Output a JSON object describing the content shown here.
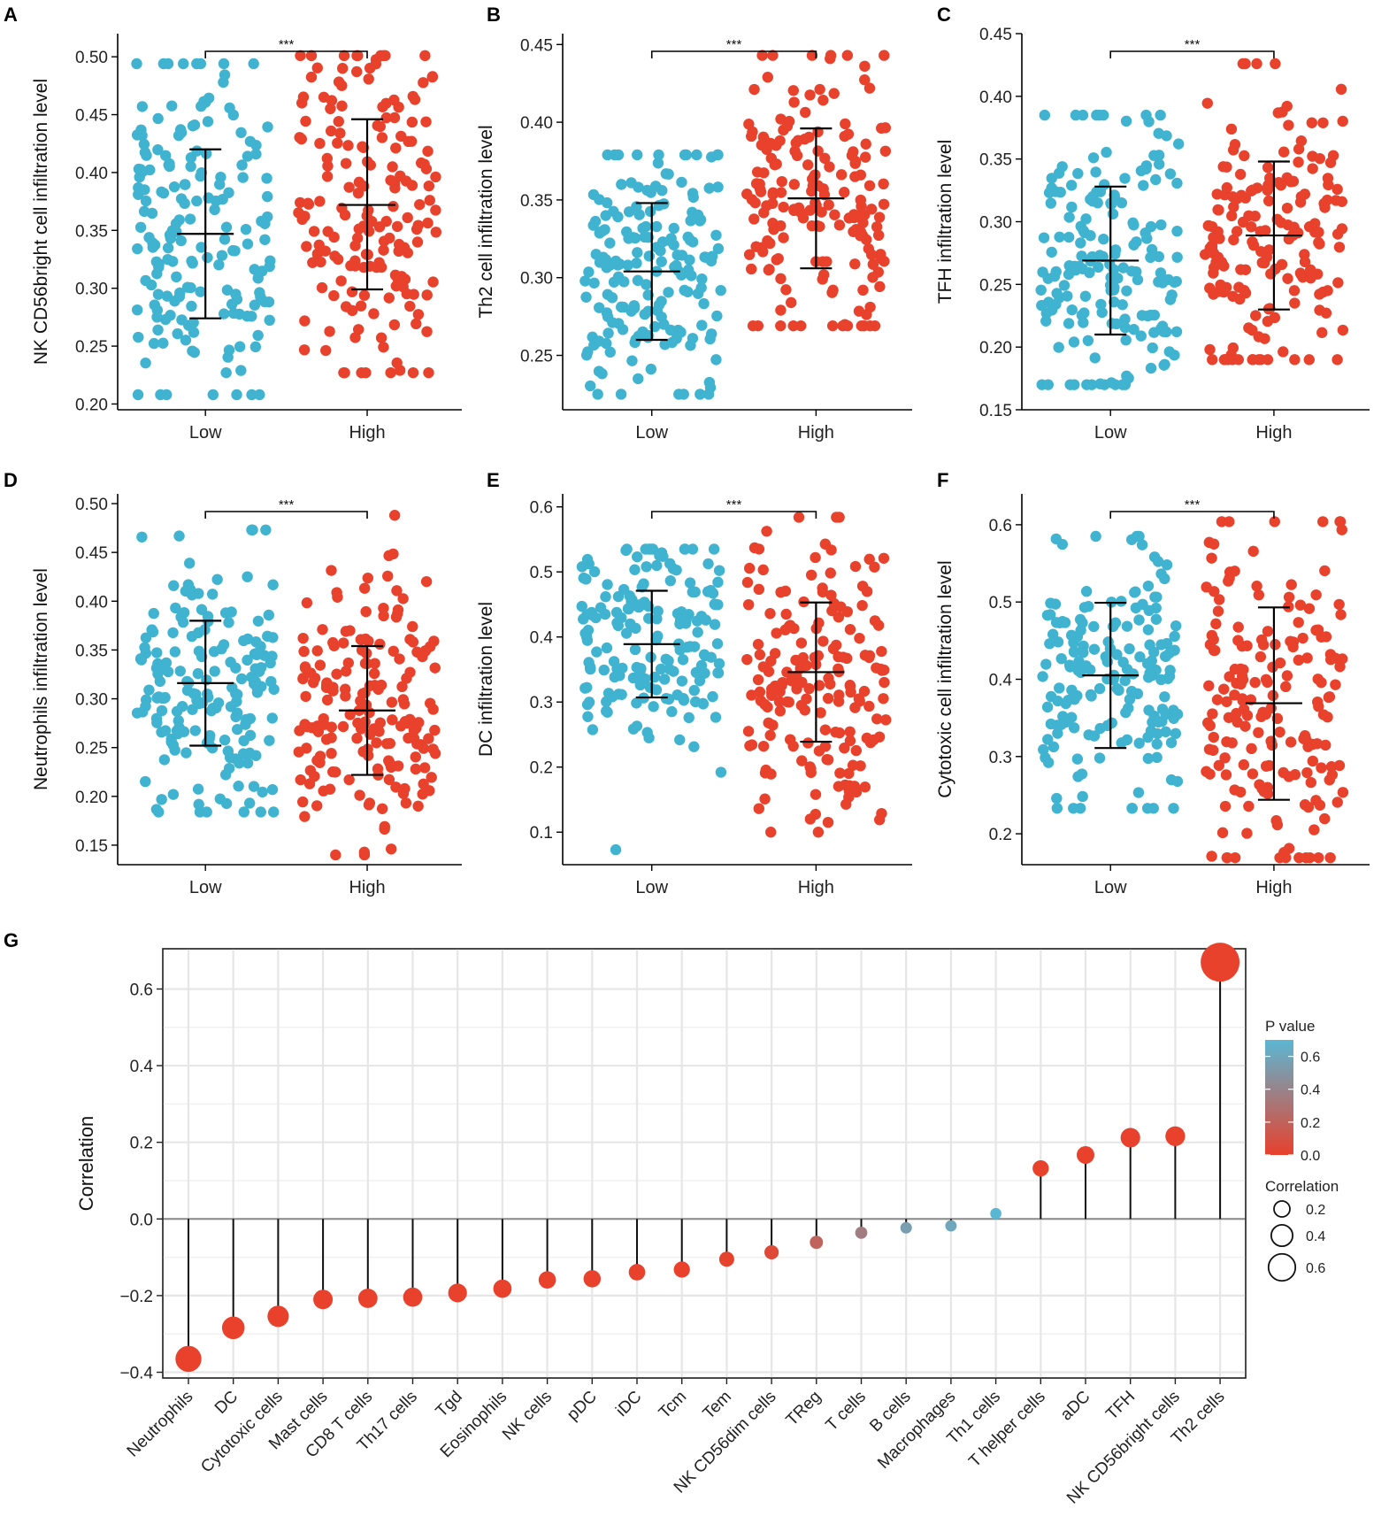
{
  "colors": {
    "low": "#3fb3cf",
    "high": "#e8412c",
    "pv_max": "#5ab7d3",
    "pv_min": "#e8412c",
    "axis": "#000000",
    "grid": "#e6e6e6",
    "zero": "#8a8a8a"
  },
  "chart_data": [
    {
      "type": "scatter",
      "panel": "A",
      "ylabel": "NK CD56bright cell infiltration level",
      "categories": [
        "Low",
        "High"
      ],
      "ylim": [
        0.195,
        0.52
      ],
      "yticks": [
        0.2,
        0.25,
        0.3,
        0.35,
        0.4,
        0.45,
        0.5
      ],
      "ytick_labels": [
        "0.20",
        "0.25",
        "0.30",
        "0.35",
        "0.40",
        "0.45",
        "0.50"
      ],
      "groups": [
        {
          "name": "Low",
          "mean": 0.347,
          "sd_low": 0.274,
          "sd_high": 0.42,
          "min": 0.208,
          "max": 0.494,
          "n": 180,
          "seed": 11
        },
        {
          "name": "High",
          "mean": 0.372,
          "sd_low": 0.299,
          "sd_high": 0.446,
          "min": 0.227,
          "max": 0.501,
          "n": 180,
          "seed": 12
        }
      ],
      "significance": "***"
    },
    {
      "type": "scatter",
      "panel": "B",
      "ylabel": "Th2 cell infiltration level",
      "categories": [
        "Low",
        "High"
      ],
      "ylim": [
        0.215,
        0.457
      ],
      "yticks": [
        0.25,
        0.3,
        0.35,
        0.4,
        0.45
      ],
      "ytick_labels": [
        "0.25",
        "0.30",
        "0.35",
        "0.40",
        "0.45"
      ],
      "groups": [
        {
          "name": "Low",
          "mean": 0.304,
          "sd_low": 0.26,
          "sd_high": 0.348,
          "min": 0.225,
          "max": 0.379,
          "n": 180,
          "seed": 21
        },
        {
          "name": "High",
          "mean": 0.351,
          "sd_low": 0.306,
          "sd_high": 0.396,
          "min": 0.269,
          "max": 0.443,
          "n": 180,
          "seed": 22
        }
      ],
      "significance": "***"
    },
    {
      "type": "scatter",
      "panel": "C",
      "ylabel": "TFH infiltration level",
      "categories": [
        "Low",
        "High"
      ],
      "ylim": [
        0.15,
        0.45
      ],
      "yticks": [
        0.15,
        0.2,
        0.25,
        0.3,
        0.35,
        0.4,
        0.45
      ],
      "ytick_labels": [
        "0.15",
        "0.20",
        "0.25",
        "0.30",
        "0.35",
        "0.40",
        "0.45"
      ],
      "groups": [
        {
          "name": "Low",
          "mean": 0.269,
          "sd_low": 0.21,
          "sd_high": 0.328,
          "min": 0.17,
          "max": 0.385,
          "n": 180,
          "seed": 31
        },
        {
          "name": "High",
          "mean": 0.289,
          "sd_low": 0.23,
          "sd_high": 0.348,
          "min": 0.19,
          "max": 0.426,
          "n": 180,
          "seed": 32
        }
      ],
      "significance": "***"
    },
    {
      "type": "scatter",
      "panel": "D",
      "ylabel": "Neutrophils infiltration level",
      "categories": [
        "Low",
        "High"
      ],
      "ylim": [
        0.13,
        0.51
      ],
      "yticks": [
        0.15,
        0.2,
        0.25,
        0.3,
        0.35,
        0.4,
        0.45,
        0.5
      ],
      "ytick_labels": [
        "0.15",
        "0.20",
        "0.25",
        "0.30",
        "0.35",
        "0.40",
        "0.45",
        "0.50"
      ],
      "groups": [
        {
          "name": "Low",
          "mean": 0.316,
          "sd_low": 0.252,
          "sd_high": 0.38,
          "min": 0.184,
          "max": 0.473,
          "n": 180,
          "seed": 41
        },
        {
          "name": "High",
          "mean": 0.288,
          "sd_low": 0.222,
          "sd_high": 0.354,
          "min": 0.14,
          "max": 0.488,
          "n": 180,
          "seed": 42
        }
      ],
      "significance": "***"
    },
    {
      "type": "scatter",
      "panel": "E",
      "ylabel": "DC infiltration level",
      "categories": [
        "Low",
        "High"
      ],
      "ylim": [
        0.05,
        0.62
      ],
      "yticks": [
        0.1,
        0.2,
        0.3,
        0.4,
        0.5,
        0.6
      ],
      "ytick_labels": [
        "0.1",
        "0.2",
        "0.3",
        "0.4",
        "0.5",
        "0.6"
      ],
      "groups": [
        {
          "name": "Low",
          "mean": 0.389,
          "sd_low": 0.307,
          "sd_high": 0.471,
          "min": 0.073,
          "max": 0.535,
          "n": 180,
          "seed": 51
        },
        {
          "name": "High",
          "mean": 0.346,
          "sd_low": 0.239,
          "sd_high": 0.453,
          "min": 0.1,
          "max": 0.584,
          "n": 180,
          "seed": 52
        }
      ],
      "significance": "***"
    },
    {
      "type": "scatter",
      "panel": "F",
      "ylabel": "Cytotoxic cell infiltration level",
      "categories": [
        "Low",
        "High"
      ],
      "ylim": [
        0.16,
        0.64
      ],
      "yticks": [
        0.2,
        0.3,
        0.4,
        0.5,
        0.6
      ],
      "ytick_labels": [
        "0.2",
        "0.3",
        "0.4",
        "0.5",
        "0.6"
      ],
      "groups": [
        {
          "name": "Low",
          "mean": 0.405,
          "sd_low": 0.311,
          "sd_high": 0.499,
          "min": 0.233,
          "max": 0.585,
          "n": 180,
          "seed": 61
        },
        {
          "name": "High",
          "mean": 0.369,
          "sd_low": 0.244,
          "sd_high": 0.493,
          "min": 0.169,
          "max": 0.604,
          "n": 180,
          "seed": 62
        }
      ],
      "significance": "***"
    },
    {
      "type": "lollipop",
      "panel": "G",
      "ylabel": "Correlation",
      "ylim": [
        -0.415,
        0.705
      ],
      "yticks": [
        -0.4,
        -0.2,
        0.0,
        0.2,
        0.4,
        0.6
      ],
      "ytick_labels": [
        "−0.4",
        "−0.2",
        "0.0",
        "0.2",
        "0.4",
        "0.6"
      ],
      "categories": [
        "Neutrophils",
        "DC",
        "Cytotoxic cells",
        "Mast cells",
        "CD8 T cells",
        "Th17 cells",
        "Tgd",
        "Eosinophils",
        "NK cells",
        "pDC",
        "iDC",
        "Tcm",
        "Tem",
        "NK CD56dim cells",
        "TReg",
        "T cells",
        "B cells",
        "Macrophages",
        "Th1 cells",
        "T helper cells",
        "aDC",
        "TFH",
        "NK CD56bright cells",
        "Th2 cells"
      ],
      "correlation": [
        -0.365,
        -0.284,
        -0.254,
        -0.21,
        -0.207,
        -0.204,
        -0.193,
        -0.182,
        -0.159,
        -0.156,
        -0.139,
        -0.132,
        -0.105,
        -0.087,
        -0.061,
        -0.036,
        -0.023,
        -0.018,
        0.014,
        0.132,
        0.167,
        0.212,
        0.216,
        0.67
      ],
      "p_value": [
        0.0,
        0.0,
        0.0,
        0.0,
        0.0,
        0.0,
        0.0,
        0.0,
        0.0,
        0.0,
        0.0,
        0.0,
        0.01,
        0.05,
        0.2,
        0.35,
        0.55,
        0.6,
        0.7,
        0.0,
        0.0,
        0.0,
        0.0,
        0.0
      ],
      "legend": {
        "pvalue_title": "P value",
        "pvalue_ticks": [
          0.0,
          0.2,
          0.4,
          0.6
        ],
        "pvalue_labels": [
          "0.0",
          "0.2",
          "0.4",
          "0.6"
        ],
        "pvalue_range": [
          0.0,
          0.7
        ],
        "size_title": "Correlation",
        "size_values": [
          0.2,
          0.4,
          0.6
        ],
        "size_labels": [
          "0.2",
          "0.4",
          "0.6"
        ]
      }
    }
  ]
}
